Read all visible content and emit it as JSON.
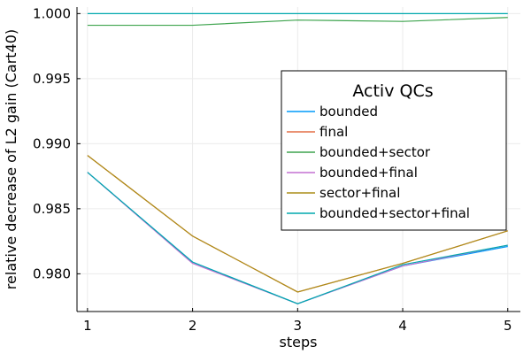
{
  "chart_data": {
    "type": "line",
    "xlabel": "steps",
    "ylabel": "relative decrease of L2 gain (Cart40)",
    "x": [
      1,
      2,
      3,
      4,
      5
    ],
    "xticks": [
      "1",
      "2",
      "3",
      "4",
      "5"
    ],
    "yticks": [
      "0.980",
      "0.985",
      "0.990",
      "0.995",
      "1.000"
    ],
    "ytick_values": [
      0.98,
      0.985,
      0.99,
      0.995,
      1.0
    ],
    "xlim": [
      0.9,
      5.12
    ],
    "ylim": [
      0.9771,
      1.0005
    ],
    "grid": true,
    "legend": {
      "title": "Activ QCs",
      "position": "right"
    },
    "series": [
      {
        "name": "bounded",
        "color": "#009AFA",
        "values": [
          0.9878,
          0.9809,
          0.9777,
          0.9806,
          0.9821
        ]
      },
      {
        "name": "final",
        "color": "#E36F47",
        "values": [
          0.9891,
          0.9829,
          0.9786,
          0.9808,
          0.9833
        ]
      },
      {
        "name": "bounded+sector",
        "color": "#3EA44E",
        "values": [
          0.9991,
          0.9991,
          0.9995,
          0.9994,
          0.9997
        ]
      },
      {
        "name": "bounded+final",
        "color": "#C371D2",
        "values": [
          0.9878,
          0.9808,
          0.9777,
          0.9806,
          0.9822
        ]
      },
      {
        "name": "sector+final",
        "color": "#AC8D18",
        "values": [
          0.9891,
          0.9829,
          0.9786,
          0.9808,
          0.9833
        ]
      },
      {
        "name": "bounded+sector+final",
        "color": "#00A9AD",
        "values": [
          0.9878,
          0.9809,
          0.9777,
          0.9807,
          0.9822
        ]
      },
      {
        "name": "",
        "color": "#00A9AD",
        "values": [
          1.0,
          1.0,
          1.0,
          1.0,
          1.0
        ]
      }
    ]
  }
}
